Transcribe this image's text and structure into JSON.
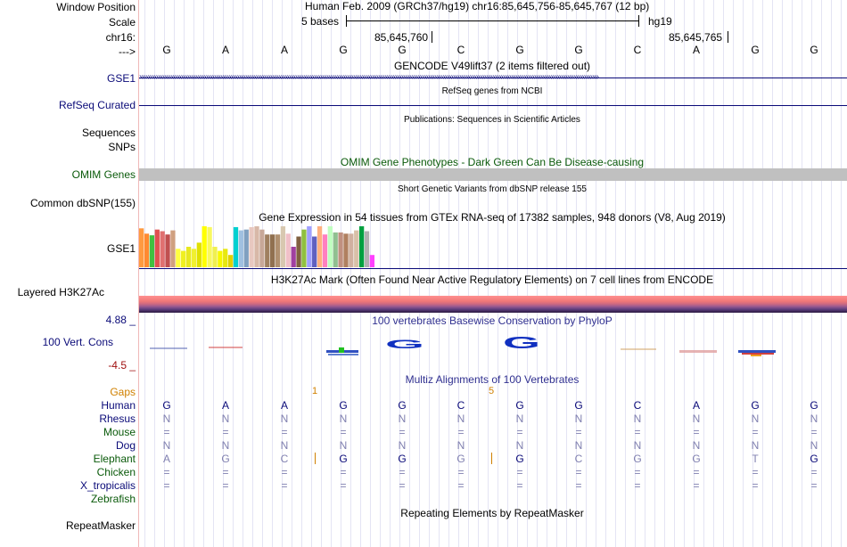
{
  "ruler": {
    "window_position_label": "Window Position",
    "window_position_value": "Human Feb. 2009 (GRCh37/hg19)   chr16:85,645,756-85,645,767 (12 bp)",
    "scale_label": "Scale",
    "scale_value": "5 bases",
    "scale_assembly": "hg19",
    "chrom_label": "chr16:",
    "coord1": "85,645,760",
    "coord2": "85,645,765",
    "strand_label": "--->",
    "bases": [
      "G",
      "A",
      "A",
      "G",
      "G",
      "C",
      "G",
      "G",
      "C",
      "A",
      "G",
      "G"
    ]
  },
  "tracks": {
    "gencode": {
      "title": "GENCODE V49lift37 (2 items filtered out)",
      "label": "GSE1"
    },
    "refseq": {
      "title": "RefSeq genes from NCBI",
      "label": "RefSeq Curated"
    },
    "publications": {
      "title": "Publications: Sequences in Scientific Articles",
      "label1": "Sequences",
      "label2": "SNPs"
    },
    "omim": {
      "title": "OMIM Gene Phenotypes - Dark Green Can Be Disease-causing",
      "label": "OMIM Genes"
    },
    "dbsnp": {
      "title": "Short Genetic Variants from dbSNP release 155",
      "label": "Common dbSNP(155)"
    },
    "gtex": {
      "title": "Gene Expression in 54 tissues from GTEx RNA-seq of 17382 samples, 948 donors (V8, Aug 2019)",
      "label": "GSE1",
      "bar_colors": [
        "#ff9a40",
        "#ff8a30",
        "#40c040",
        "#e05050",
        "#e07070",
        "#c05050",
        "#d0a080",
        "#ffff40",
        "#f0f020",
        "#e8e820",
        "#f0f030",
        "#e0e000",
        "#ffff00",
        "#f8f860",
        "#f0f050",
        "#f8f800",
        "#e8e810",
        "#e0d000",
        "#00d0d0",
        "#a0c0e0",
        "#80a0c0",
        "#e8c8c0",
        "#d8b8a8",
        "#c8a898",
        "#a08060",
        "#907050",
        "#b09070",
        "#d8c8b0",
        "#f0c0c8",
        "#a040a0",
        "#806040",
        "#90c040",
        "#a0a0ff",
        "#6060c0",
        "#ffb080",
        "#ff80c0",
        "#c0ffc0",
        "#90c090",
        "#c09080",
        "#b08060",
        "#d0b0a0",
        "#d8c0a8",
        "#00a040",
        "#b0b0b0",
        "#ff40ff"
      ],
      "bar_values": [
        0.95,
        0.82,
        0.78,
        0.92,
        0.88,
        0.8,
        0.9,
        0.45,
        0.4,
        0.5,
        0.45,
        0.6,
        1.0,
        0.98,
        0.5,
        0.4,
        0.45,
        0.3,
        0.98,
        0.9,
        0.92,
        0.98,
        1.0,
        0.92,
        0.8,
        0.8,
        0.8,
        1.0,
        0.82,
        0.5,
        0.75,
        0.92,
        1.0,
        0.75,
        1.0,
        0.8,
        1.0,
        0.85,
        0.85,
        0.82,
        0.82,
        0.9,
        1.0,
        0.88,
        0.3
      ]
    },
    "h3k27ac": {
      "title": "H3K27Ac Mark (Often Found Near Active Regulatory Elements) on 7 cell lines from ENCODE",
      "label": "Layered H3K27Ac"
    },
    "phylop": {
      "title": "100 vertebrates Basewise Conservation by PhyloP",
      "label": "100 Vert. Cons",
      "max": "4.88 _",
      "min": "-4.5 _"
    },
    "multiz": {
      "title": "Multiz Alignments of 100 Vertebrates",
      "gaps_label": "Gaps",
      "gap1": "1",
      "gap2": "5",
      "species": [
        {
          "name": "Human",
          "color": "#0a0a78",
          "bases": [
            "G",
            "A",
            "A",
            "G",
            "G",
            "C",
            "G",
            "G",
            "C",
            "A",
            "G",
            "G"
          ]
        },
        {
          "name": "Rhesus",
          "color": "#0a0a78",
          "bases": [
            "N",
            "N",
            "N",
            "N",
            "N",
            "N",
            "N",
            "N",
            "N",
            "N",
            "N",
            "N"
          ]
        },
        {
          "name": "Mouse",
          "color": "#0a5a0a",
          "bases": [
            "=",
            "=",
            "=",
            "=",
            "=",
            "=",
            "=",
            "=",
            "=",
            "=",
            "=",
            "="
          ]
        },
        {
          "name": "Dog",
          "color": "#0a0a78",
          "bases": [
            "N",
            "N",
            "N",
            "N",
            "N",
            "N",
            "N",
            "N",
            "N",
            "N",
            "N",
            "N"
          ]
        },
        {
          "name": "Elephant",
          "color": "#0a5a0a",
          "bases": [
            "A",
            "G",
            "C",
            "G",
            "G",
            "G",
            "G",
            "C",
            "G",
            "G",
            "T",
            "G"
          ]
        },
        {
          "name": "Chicken",
          "color": "#0a5a0a",
          "bases": [
            "=",
            "=",
            "=",
            "=",
            "=",
            "=",
            "=",
            "=",
            "=",
            "=",
            "=",
            "="
          ]
        },
        {
          "name": "X_tropicalis",
          "color": "#0a0a78",
          "bases": [
            "=",
            "=",
            "=",
            "=",
            "=",
            "=",
            "=",
            "=",
            "=",
            "=",
            "=",
            "="
          ]
        },
        {
          "name": "Zebrafish",
          "color": "#0a5a0a",
          "bases": [
            "",
            "",
            "",
            "",
            "",
            "",
            "",
            "",
            "",
            "",
            "",
            ""
          ]
        }
      ]
    },
    "repeatmasker": {
      "title": "Repeating Elements by RepeatMasker",
      "label": "RepeatMasker"
    }
  }
}
